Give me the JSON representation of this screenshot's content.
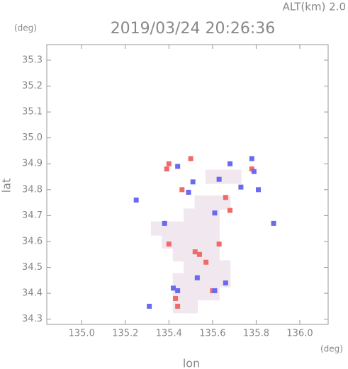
{
  "chart_data": {
    "type": "scatter",
    "title": "2019/03/24 20:26:36",
    "subtitle": "ALT(km) 2.0",
    "y_unit": "(deg)",
    "x_unit": "(deg)",
    "xlabel": "lon",
    "ylabel": "lat",
    "xlim": [
      134.84,
      136.13
    ],
    "ylim": [
      34.28,
      35.36
    ],
    "xticks": [
      {
        "value": 135,
        "label": "135.0"
      },
      135.2,
      135.4,
      135.6,
      135.8,
      {
        "value": 136,
        "label": "136.0"
      }
    ],
    "yticks": [
      34.3,
      34.4,
      34.5,
      34.6,
      34.7,
      34.8,
      34.9,
      {
        "value": 35,
        "label": "35.0"
      },
      35.1,
      35.2,
      35.3
    ],
    "series": [
      {
        "color": "#f1e7ee",
        "x": [
          135.6,
          135.65,
          135.7,
          135.55,
          135.6,
          135.65,
          135.5,
          135.55,
          135.6,
          135.35,
          135.4,
          135.45,
          135.5,
          135.55,
          135.6,
          135.4,
          135.45,
          135.5,
          135.55,
          135.6,
          135.45,
          135.5,
          135.55,
          135.6,
          135.5,
          135.55,
          135.6,
          135.65,
          135.45,
          135.5,
          135.55,
          135.6,
          135.65,
          135.45,
          135.5,
          135.55,
          135.6,
          135.45,
          135.5
        ],
        "y": [
          34.85,
          34.85,
          34.85,
          34.75,
          34.75,
          34.75,
          34.7,
          34.7,
          34.7,
          34.65,
          34.65,
          34.65,
          34.65,
          34.65,
          34.65,
          34.6,
          34.6,
          34.6,
          34.6,
          34.6,
          34.55,
          34.55,
          34.55,
          34.55,
          34.5,
          34.5,
          34.5,
          34.5,
          34.45,
          34.45,
          34.45,
          34.45,
          34.45,
          34.4,
          34.4,
          34.4,
          34.4,
          34.35,
          34.35
        ]
      },
      {
        "color": "#f06a6a",
        "x": [
          135.39,
          135.4,
          135.44,
          135.43,
          135.52,
          135.54,
          135.63,
          135.68,
          135.78,
          135.66,
          135.57,
          135.6,
          135.4,
          135.46,
          135.5
        ],
        "y": [
          34.88,
          34.59,
          34.35,
          34.38,
          34.56,
          34.55,
          34.59,
          34.72,
          34.88,
          34.77,
          34.52,
          34.41,
          34.9,
          34.8,
          34.92
        ]
      },
      {
        "color": "#6a6af0",
        "x": [
          135.31,
          135.42,
          135.44,
          135.61,
          135.63,
          135.68,
          135.79,
          135.88,
          135.25,
          135.49,
          135.53,
          135.61,
          135.38,
          135.44,
          135.51,
          135.73,
          135.81,
          135.66,
          135.78
        ],
        "y": [
          34.35,
          34.42,
          34.41,
          34.41,
          34.84,
          34.9,
          34.87,
          34.67,
          34.76,
          34.79,
          34.46,
          34.71,
          34.67,
          34.89,
          34.83,
          34.81,
          34.8,
          34.44,
          34.92
        ]
      }
    ]
  }
}
